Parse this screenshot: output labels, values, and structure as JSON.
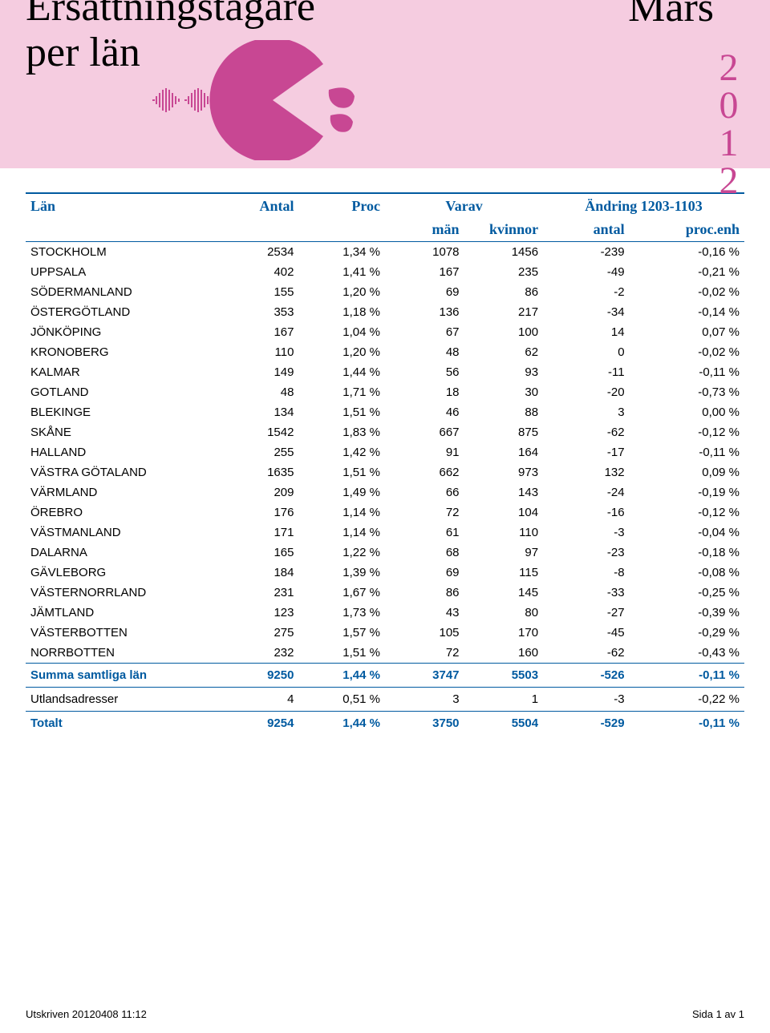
{
  "header": {
    "title_line1": "Ersättningstagare",
    "title_line2": "per län",
    "month": "Mars",
    "year": "2012",
    "colors": {
      "band_bg": "#f5cce0",
      "accent_pink": "#c84793",
      "accent_blue": "#005aa0",
      "text": "#000000",
      "page_bg": "#ffffff"
    }
  },
  "table": {
    "head1": {
      "lan": "Län",
      "antal": "Antal",
      "proc": "Proc",
      "varav": "Varav",
      "andring": "Ändring 1203-1103"
    },
    "head2": {
      "man": "män",
      "kvinnor": "kvinnor",
      "antal": "antal",
      "procenh": "proc.enh"
    },
    "rows": [
      {
        "lan": "STOCKHOLM",
        "antal": "2534",
        "proc": "1,34 %",
        "man": "1078",
        "kvinnor": "1456",
        "aantal": "-239",
        "procenh": "-0,16 %"
      },
      {
        "lan": "UPPSALA",
        "antal": "402",
        "proc": "1,41 %",
        "man": "167",
        "kvinnor": "235",
        "aantal": "-49",
        "procenh": "-0,21 %"
      },
      {
        "lan": "SÖDERMANLAND",
        "antal": "155",
        "proc": "1,20 %",
        "man": "69",
        "kvinnor": "86",
        "aantal": "-2",
        "procenh": "-0,02 %"
      },
      {
        "lan": "ÖSTERGÖTLAND",
        "antal": "353",
        "proc": "1,18 %",
        "man": "136",
        "kvinnor": "217",
        "aantal": "-34",
        "procenh": "-0,14 %"
      },
      {
        "lan": "JÖNKÖPING",
        "antal": "167",
        "proc": "1,04 %",
        "man": "67",
        "kvinnor": "100",
        "aantal": "14",
        "procenh": "0,07 %"
      },
      {
        "lan": "KRONOBERG",
        "antal": "110",
        "proc": "1,20 %",
        "man": "48",
        "kvinnor": "62",
        "aantal": "0",
        "procenh": "-0,02 %"
      },
      {
        "lan": "KALMAR",
        "antal": "149",
        "proc": "1,44 %",
        "man": "56",
        "kvinnor": "93",
        "aantal": "-11",
        "procenh": "-0,11 %"
      },
      {
        "lan": "GOTLAND",
        "antal": "48",
        "proc": "1,71 %",
        "man": "18",
        "kvinnor": "30",
        "aantal": "-20",
        "procenh": "-0,73 %"
      },
      {
        "lan": "BLEKINGE",
        "antal": "134",
        "proc": "1,51 %",
        "man": "46",
        "kvinnor": "88",
        "aantal": "3",
        "procenh": "0,00 %"
      },
      {
        "lan": "SKÅNE",
        "antal": "1542",
        "proc": "1,83 %",
        "man": "667",
        "kvinnor": "875",
        "aantal": "-62",
        "procenh": "-0,12 %"
      },
      {
        "lan": "HALLAND",
        "antal": "255",
        "proc": "1,42 %",
        "man": "91",
        "kvinnor": "164",
        "aantal": "-17",
        "procenh": "-0,11 %"
      },
      {
        "lan": "VÄSTRA GÖTALAND",
        "antal": "1635",
        "proc": "1,51 %",
        "man": "662",
        "kvinnor": "973",
        "aantal": "132",
        "procenh": "0,09 %"
      },
      {
        "lan": "VÄRMLAND",
        "antal": "209",
        "proc": "1,49 %",
        "man": "66",
        "kvinnor": "143",
        "aantal": "-24",
        "procenh": "-0,19 %"
      },
      {
        "lan": "ÖREBRO",
        "antal": "176",
        "proc": "1,14 %",
        "man": "72",
        "kvinnor": "104",
        "aantal": "-16",
        "procenh": "-0,12 %"
      },
      {
        "lan": "VÄSTMANLAND",
        "antal": "171",
        "proc": "1,14 %",
        "man": "61",
        "kvinnor": "110",
        "aantal": "-3",
        "procenh": "-0,04 %"
      },
      {
        "lan": "DALARNA",
        "antal": "165",
        "proc": "1,22 %",
        "man": "68",
        "kvinnor": "97",
        "aantal": "-23",
        "procenh": "-0,18 %"
      },
      {
        "lan": "GÄVLEBORG",
        "antal": "184",
        "proc": "1,39 %",
        "man": "69",
        "kvinnor": "115",
        "aantal": "-8",
        "procenh": "-0,08 %"
      },
      {
        "lan": "VÄSTERNORRLAND",
        "antal": "231",
        "proc": "1,67 %",
        "man": "86",
        "kvinnor": "145",
        "aantal": "-33",
        "procenh": "-0,25 %"
      },
      {
        "lan": "JÄMTLAND",
        "antal": "123",
        "proc": "1,73 %",
        "man": "43",
        "kvinnor": "80",
        "aantal": "-27",
        "procenh": "-0,39 %"
      },
      {
        "lan": "VÄSTERBOTTEN",
        "antal": "275",
        "proc": "1,57 %",
        "man": "105",
        "kvinnor": "170",
        "aantal": "-45",
        "procenh": "-0,29 %"
      },
      {
        "lan": "NORRBOTTEN",
        "antal": "232",
        "proc": "1,51 %",
        "man": "72",
        "kvinnor": "160",
        "aantal": "-62",
        "procenh": "-0,43 %"
      }
    ],
    "summa": {
      "lan": "Summa samtliga län",
      "antal": "9250",
      "proc": "1,44 %",
      "man": "3747",
      "kvinnor": "5503",
      "aantal": "-526",
      "procenh": "-0,11 %"
    },
    "utlands": {
      "lan": "Utlandsadresser",
      "antal": "4",
      "proc": "0,51 %",
      "man": "3",
      "kvinnor": "1",
      "aantal": "-3",
      "procenh": "-0,22 %"
    },
    "totalt": {
      "lan": "Totalt",
      "antal": "9254",
      "proc": "1,44 %",
      "man": "3750",
      "kvinnor": "5504",
      "aantal": "-529",
      "procenh": "-0,11 %"
    }
  },
  "footer": {
    "printed": "Utskriven 20120408 11:12",
    "page": "Sida 1 av 1"
  }
}
